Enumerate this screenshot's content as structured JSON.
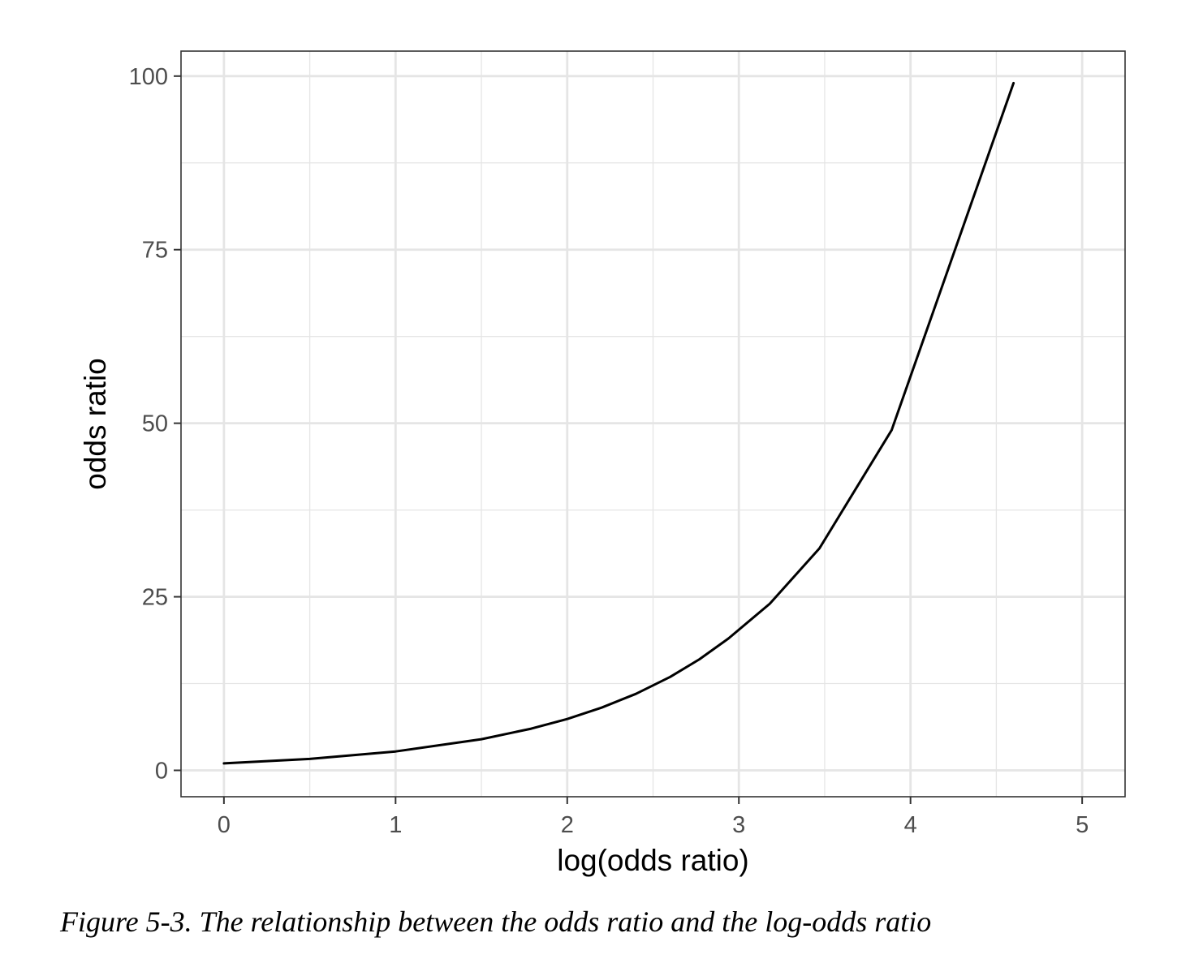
{
  "caption": "Figure 5-3. The relationship between the odds ratio and the log-odds ratio",
  "chart_data": {
    "type": "line",
    "title": "",
    "xlabel": "log(odds ratio)",
    "ylabel": "odds ratio",
    "xlim": [
      -0.25,
      5.25
    ],
    "ylim": [
      -3.8,
      103.6
    ],
    "x_ticks": [
      0,
      1,
      2,
      3,
      4,
      5
    ],
    "x_tick_labels": [
      "0",
      "1",
      "2",
      "3",
      "4",
      "5"
    ],
    "y_ticks": [
      0,
      25,
      50,
      75,
      100
    ],
    "y_tick_labels": [
      "0",
      "25",
      "50",
      "75",
      "100"
    ],
    "x_minor_ticks": [
      0.5,
      1.5,
      2.5,
      3.5,
      4.5
    ],
    "y_minor_ticks": [
      12.5,
      37.5,
      62.5,
      87.5
    ],
    "grid": true,
    "legend": "none",
    "line_color": "#000000",
    "grid_color": "#e5e5e5",
    "series": [
      {
        "x": [
          0,
          0.5,
          1,
          1.5,
          1.79,
          2,
          2.2,
          2.4,
          2.6,
          2.77,
          2.94,
          3.18,
          3.47,
          3.89,
          4.6
        ],
        "values": [
          1,
          1.65,
          2.72,
          4.48,
          6,
          7.39,
          9.03,
          11.02,
          13.46,
          16,
          19,
          24,
          32,
          49,
          99
        ]
      }
    ]
  }
}
